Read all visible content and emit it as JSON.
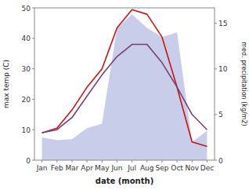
{
  "chart_data": {
    "type": "line",
    "x_label": "date (month)",
    "y_label": "max temp (C)",
    "y2_label": "med. precipitation (kg/m2)",
    "categories": [
      "Jan",
      "Feb",
      "Mar",
      "Apr",
      "May",
      "Jun",
      "Jul",
      "Aug",
      "Sep",
      "Oct",
      "Nov",
      "Dec"
    ],
    "series": [
      {
        "type": "area",
        "axis": "y2",
        "color": "#aab4dd",
        "values": [
          2.5,
          2.2,
          2.3,
          3.5,
          4.0,
          14.5,
          16.0,
          14.5,
          13.5,
          14.0,
          2.0,
          3.2
        ]
      },
      {
        "type": "line",
        "axis": "y2",
        "color": "#cc1111",
        "values": [
          3.0,
          3.5,
          5.5,
          8.0,
          10.0,
          14.5,
          16.5,
          16.0,
          13.5,
          8.0,
          2.0,
          1.5
        ]
      },
      {
        "type": "line",
        "color": "#7b3f6e",
        "values": [
          9,
          10,
          14,
          21,
          28,
          34,
          38,
          38,
          32,
          24,
          15,
          10
        ]
      }
    ],
    "ylim": [
      0,
      50
    ],
    "yticks": [
      0,
      10,
      20,
      30,
      40,
      50
    ],
    "y2lim": [
      0,
      16.7
    ],
    "y2ticks": [
      0,
      5,
      10,
      15
    ],
    "grid": false
  }
}
